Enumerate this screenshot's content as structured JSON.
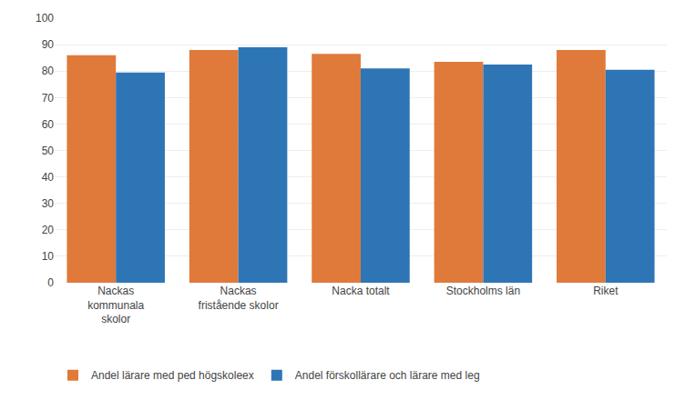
{
  "chart_data": {
    "type": "bar",
    "categories": [
      "Nackas\nkommunala\nskolor",
      "Nackas\nfristående skolor",
      "Nacka totalt",
      "Stockholms län",
      "Riket"
    ],
    "series": [
      {
        "name": "Andel lärare med ped högskoleex",
        "color": "#E07A3A",
        "values": [
          86,
          88,
          86.5,
          83.5,
          88
        ]
      },
      {
        "name": "Andel förskollärare och lärare med leg",
        "color": "#2E75B6",
        "values": [
          79.5,
          89,
          81,
          82.5,
          80.5
        ]
      }
    ],
    "ylim": [
      0,
      100
    ],
    "yticks": [
      0,
      10,
      20,
      30,
      40,
      50,
      60,
      70,
      80,
      90,
      100
    ],
    "grid": true,
    "legend": "bottom"
  }
}
